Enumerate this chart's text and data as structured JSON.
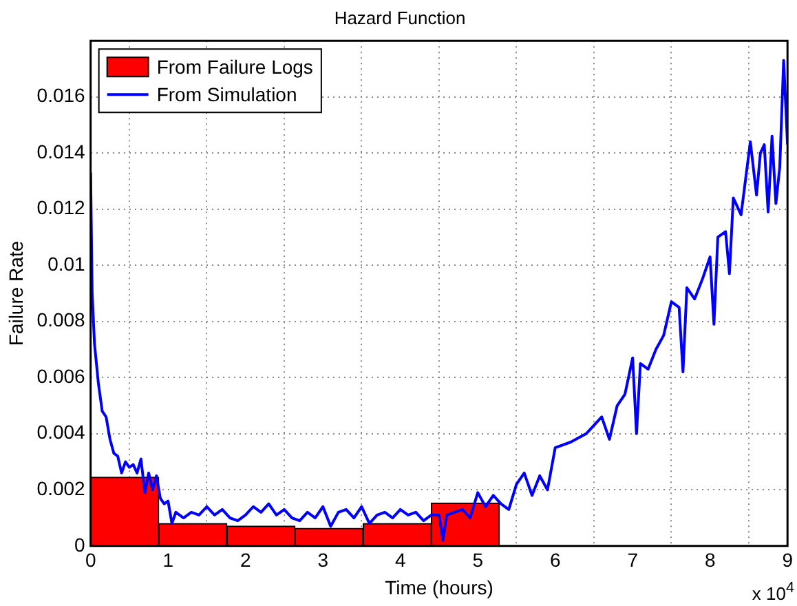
{
  "chart_data": {
    "type": "histogram",
    "title": "Hazard Function",
    "xlabel": "Time (hours)",
    "ylabel": "Failure Rate",
    "annotations": [
      "x 10$^{4}$"
    ],
    "xlim": [
      0,
      9
    ],
    "xticks": [
      0,
      1,
      2,
      3,
      4,
      5,
      6,
      7,
      8,
      9
    ],
    "ylim": [
      0,
      0.018
    ],
    "yticks": [
      0,
      0.002,
      0.004,
      0.006,
      0.008,
      0.01,
      0.012,
      0.014,
      0.016
    ],
    "grid": true,
    "legend": "top left",
    "series": [
      {
        "name": "From Failure Logs",
        "color": "#ff0000",
        "bins": [
          0,
          0.88,
          1.76,
          2.64,
          3.52,
          4.4,
          5.28
        ],
        "values": [
          0.00245,
          0.0008,
          0.00071,
          0.00063,
          0.0008,
          0.00153
        ]
      },
      {
        "name": "From Simulation",
        "type": "line",
        "color": "#0000ff",
        "x": [
          0,
          0.02,
          0.05,
          0.1,
          0.15,
          0.2,
          0.25,
          0.3,
          0.35,
          0.4,
          0.45,
          0.5,
          0.55,
          0.6,
          0.65,
          0.7,
          0.75,
          0.8,
          0.85,
          0.9,
          0.95,
          1.0,
          1.05,
          1.1,
          1.2,
          1.3,
          1.4,
          1.5,
          1.6,
          1.7,
          1.8,
          1.9,
          2.0,
          2.1,
          2.2,
          2.3,
          2.4,
          2.5,
          2.6,
          2.7,
          2.8,
          2.9,
          3.0,
          3.1,
          3.2,
          3.3,
          3.4,
          3.5,
          3.6,
          3.7,
          3.8,
          3.9,
          4.0,
          4.1,
          4.2,
          4.3,
          4.4,
          4.5,
          4.55,
          4.6,
          4.7,
          4.8,
          4.9,
          5.0,
          5.1,
          5.2,
          5.3,
          5.4,
          5.5,
          5.6,
          5.7,
          5.8,
          5.9,
          6.0,
          6.2,
          6.4,
          6.6,
          6.7,
          6.8,
          6.9,
          7.0,
          7.05,
          7.1,
          7.2,
          7.3,
          7.4,
          7.5,
          7.6,
          7.65,
          7.7,
          7.8,
          7.9,
          8.0,
          8.05,
          8.1,
          8.2,
          8.25,
          8.3,
          8.4,
          8.52,
          8.6,
          8.65,
          8.7,
          8.75,
          8.8,
          8.85,
          8.9,
          8.95,
          9.0
        ],
        "values": [
          0.0133,
          0.009,
          0.0072,
          0.0058,
          0.0048,
          0.0046,
          0.0038,
          0.0033,
          0.0032,
          0.0026,
          0.003,
          0.0028,
          0.0029,
          0.0026,
          0.0031,
          0.0019,
          0.0026,
          0.002,
          0.0025,
          0.0017,
          0.0015,
          0.0016,
          0.0008,
          0.0012,
          0.001,
          0.0012,
          0.0011,
          0.0014,
          0.0011,
          0.0013,
          0.001,
          0.0009,
          0.0011,
          0.0014,
          0.0012,
          0.0015,
          0.0011,
          0.0013,
          0.001,
          0.0009,
          0.0012,
          0.001,
          0.0014,
          0.0007,
          0.0012,
          0.0013,
          0.001,
          0.0014,
          0.0008,
          0.0011,
          0.0012,
          0.001,
          0.0013,
          0.0011,
          0.0012,
          0.0009,
          0.0011,
          0.0011,
          0.0002,
          0.0011,
          0.0012,
          0.0013,
          0.001,
          0.0019,
          0.0014,
          0.0018,
          0.0015,
          0.0013,
          0.0022,
          0.0026,
          0.0018,
          0.0025,
          0.002,
          0.0035,
          0.0037,
          0.004,
          0.0046,
          0.0038,
          0.005,
          0.0054,
          0.0067,
          0.004,
          0.0065,
          0.0063,
          0.007,
          0.0075,
          0.0087,
          0.0085,
          0.0062,
          0.0092,
          0.0088,
          0.0095,
          0.0103,
          0.0079,
          0.011,
          0.0112,
          0.0097,
          0.0124,
          0.0118,
          0.0144,
          0.0125,
          0.014,
          0.0143,
          0.0119,
          0.0146,
          0.0122,
          0.0135,
          0.0173,
          0.0143
        ]
      }
    ]
  }
}
